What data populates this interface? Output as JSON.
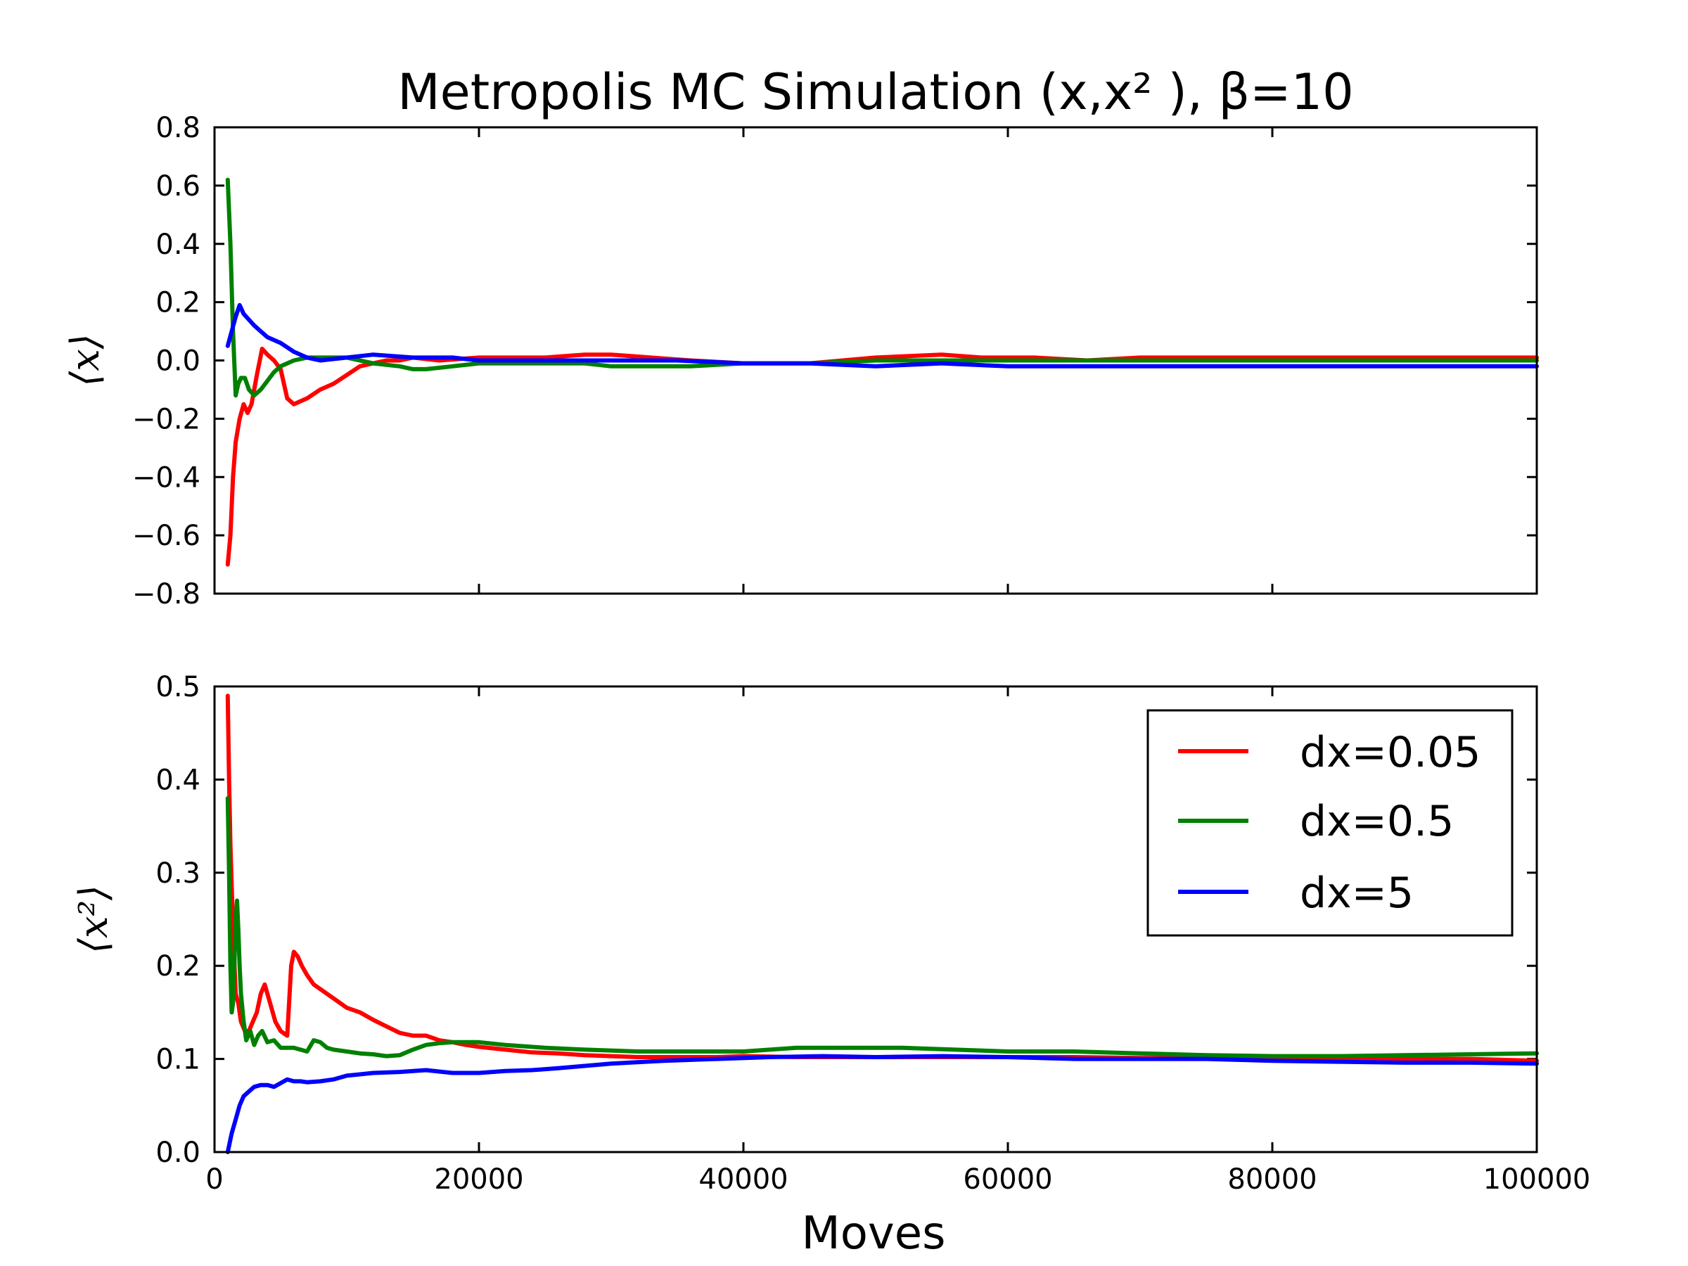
{
  "chart_data": [
    {
      "type": "line",
      "title": "Metropolis MC Simulation (x,x² ), β=10",
      "xlabel": "",
      "ylabel": "⟨x⟩",
      "xlim": [
        0,
        100000
      ],
      "ylim": [
        -0.8,
        0.8
      ],
      "yticks": [
        "0.8",
        "0.6",
        "0.4",
        "0.2",
        "0.0",
        "−0.2",
        "−0.4",
        "−0.6",
        "−0.8"
      ],
      "ytick_values": [
        0.8,
        0.6,
        0.4,
        0.2,
        0.0,
        -0.2,
        -0.4,
        -0.6,
        -0.8
      ],
      "xtick_values": [
        0,
        20000,
        40000,
        60000,
        80000,
        100000
      ],
      "series": [
        {
          "name": "dx=0.05",
          "color": "#ff0000",
          "x": [
            1000,
            1200,
            1400,
            1600,
            1900,
            2200,
            2500,
            2800,
            3200,
            3600,
            4000,
            4500,
            5000,
            5500,
            6000,
            6500,
            7000,
            8000,
            9000,
            10000,
            11000,
            12000,
            13000,
            14000,
            15000,
            17000,
            20000,
            25000,
            28000,
            30000,
            33000,
            36000,
            40000,
            45000,
            50000,
            55000,
            58000,
            62000,
            66000,
            70000,
            74000,
            78000,
            82000,
            86000,
            90000,
            95000,
            100000
          ],
          "y": [
            -0.7,
            -0.6,
            -0.4,
            -0.28,
            -0.2,
            -0.15,
            -0.18,
            -0.15,
            -0.05,
            0.04,
            0.02,
            0.0,
            -0.03,
            -0.13,
            -0.15,
            -0.14,
            -0.13,
            -0.1,
            -0.08,
            -0.05,
            -0.02,
            -0.01,
            0.0,
            0.0,
            0.01,
            0.0,
            0.01,
            0.01,
            0.02,
            0.02,
            0.01,
            0.0,
            -0.01,
            -0.01,
            0.01,
            0.02,
            0.01,
            0.01,
            0.0,
            0.01,
            0.01,
            0.01,
            0.01,
            0.01,
            0.01,
            0.01,
            0.01
          ]
        },
        {
          "name": "dx=0.5",
          "color": "#008000",
          "x": [
            1000,
            1200,
            1400,
            1600,
            1800,
            2000,
            2300,
            2600,
            3000,
            3500,
            4000,
            4500,
            5000,
            6000,
            7000,
            8000,
            9000,
            10000,
            12000,
            14000,
            15000,
            16000,
            18000,
            20000,
            22000,
            25000,
            28000,
            30000,
            33000,
            36000,
            40000,
            45000,
            50000,
            55000,
            60000,
            65000,
            70000,
            75000,
            80000,
            85000,
            90000,
            95000,
            100000
          ],
          "y": [
            0.62,
            0.4,
            0.1,
            -0.12,
            -0.08,
            -0.06,
            -0.06,
            -0.1,
            -0.12,
            -0.1,
            -0.07,
            -0.04,
            -0.02,
            0.0,
            0.01,
            0.01,
            0.01,
            0.01,
            -0.01,
            -0.02,
            -0.03,
            -0.03,
            -0.02,
            -0.01,
            -0.01,
            -0.01,
            -0.01,
            -0.02,
            -0.02,
            -0.02,
            -0.01,
            -0.01,
            0.0,
            0.0,
            0.0,
            0.0,
            0.0,
            0.0,
            0.0,
            0.0,
            0.0,
            0.0,
            0.0
          ]
        },
        {
          "name": "dx=5",
          "color": "#0000ff",
          "x": [
            1000,
            1300,
            1600,
            1900,
            2200,
            2600,
            3000,
            3500,
            4000,
            5000,
            6000,
            7000,
            8000,
            10000,
            12000,
            15000,
            18000,
            20000,
            25000,
            30000,
            35000,
            40000,
            45000,
            50000,
            55000,
            60000,
            65000,
            70000,
            75000,
            80000,
            85000,
            90000,
            95000,
            100000
          ],
          "y": [
            0.05,
            0.1,
            0.15,
            0.19,
            0.16,
            0.14,
            0.12,
            0.1,
            0.08,
            0.06,
            0.03,
            0.01,
            0.0,
            0.01,
            0.02,
            0.01,
            0.01,
            0.0,
            0.0,
            0.0,
            0.0,
            -0.01,
            -0.01,
            -0.02,
            -0.01,
            -0.02,
            -0.02,
            -0.02,
            -0.02,
            -0.02,
            -0.02,
            -0.02,
            -0.02,
            -0.02
          ]
        }
      ]
    },
    {
      "type": "line",
      "title": "",
      "xlabel": "Moves",
      "ylabel": "⟨x²⟩",
      "xlim": [
        0,
        100000
      ],
      "ylim": [
        0.0,
        0.5
      ],
      "yticks": [
        "0.5",
        "0.4",
        "0.3",
        "0.2",
        "0.1",
        "0.0"
      ],
      "ytick_values": [
        0.5,
        0.4,
        0.3,
        0.2,
        0.1,
        0.0
      ],
      "xticks": [
        "0",
        "20000",
        "40000",
        "60000",
        "80000",
        "100000"
      ],
      "xtick_values": [
        0,
        20000,
        40000,
        60000,
        80000,
        100000
      ],
      "legend": {
        "position": "top-right",
        "entries": [
          {
            "label": "dx=0.05",
            "color": "#ff0000"
          },
          {
            "label": "dx=0.5",
            "color": "#008000"
          },
          {
            "label": "dx=5",
            "color": "#0000ff"
          }
        ]
      },
      "series": [
        {
          "name": "dx=0.05",
          "color": "#ff0000",
          "x": [
            1000,
            1100,
            1200,
            1400,
            1600,
            1800,
            2000,
            2300,
            2600,
            2900,
            3200,
            3500,
            3800,
            4200,
            4600,
            5000,
            5500,
            5800,
            6000,
            6300,
            6600,
            7000,
            7500,
            8000,
            9000,
            10000,
            11000,
            12000,
            13000,
            14000,
            15000,
            16000,
            17000,
            18000,
            19000,
            20000,
            22000,
            24000,
            26000,
            28000,
            30000,
            32000,
            34000,
            36000,
            38000,
            40000,
            44000,
            48000,
            52000,
            56000,
            60000,
            65000,
            70000,
            75000,
            80000,
            85000,
            90000,
            95000,
            100000
          ],
          "y": [
            0.49,
            0.4,
            0.33,
            0.24,
            0.17,
            0.16,
            0.14,
            0.13,
            0.13,
            0.14,
            0.15,
            0.17,
            0.18,
            0.16,
            0.14,
            0.13,
            0.125,
            0.2,
            0.215,
            0.21,
            0.2,
            0.19,
            0.18,
            0.175,
            0.165,
            0.155,
            0.15,
            0.142,
            0.135,
            0.128,
            0.125,
            0.125,
            0.12,
            0.118,
            0.115,
            0.113,
            0.11,
            0.107,
            0.106,
            0.104,
            0.103,
            0.102,
            0.102,
            0.102,
            0.102,
            0.103,
            0.102,
            0.102,
            0.102,
            0.102,
            0.102,
            0.102,
            0.101,
            0.101,
            0.101,
            0.1,
            0.1,
            0.1,
            0.098
          ]
        },
        {
          "name": "dx=0.5",
          "color": "#008000",
          "x": [
            1000,
            1100,
            1200,
            1300,
            1400,
            1500,
            1600,
            1700,
            1800,
            1900,
            2000,
            2200,
            2400,
            2700,
            3000,
            3300,
            3600,
            4000,
            4500,
            5000,
            6000,
            7000,
            7500,
            8000,
            8500,
            9000,
            10000,
            11000,
            12000,
            13000,
            14000,
            15000,
            16000,
            17000,
            18000,
            20000,
            22000,
            25000,
            28000,
            32000,
            36000,
            40000,
            44000,
            48000,
            52000,
            56000,
            60000,
            65000,
            70000,
            75000,
            80000,
            85000,
            90000,
            95000,
            100000
          ],
          "y": [
            0.38,
            0.3,
            0.2,
            0.15,
            0.16,
            0.2,
            0.25,
            0.27,
            0.24,
            0.2,
            0.17,
            0.14,
            0.12,
            0.13,
            0.115,
            0.125,
            0.13,
            0.118,
            0.12,
            0.112,
            0.112,
            0.108,
            0.12,
            0.118,
            0.112,
            0.11,
            0.108,
            0.106,
            0.105,
            0.103,
            0.104,
            0.11,
            0.115,
            0.117,
            0.118,
            0.118,
            0.115,
            0.112,
            0.11,
            0.108,
            0.108,
            0.108,
            0.112,
            0.112,
            0.112,
            0.11,
            0.108,
            0.108,
            0.106,
            0.104,
            0.103,
            0.103,
            0.104,
            0.105,
            0.106
          ]
        },
        {
          "name": "dx=5",
          "color": "#0000ff",
          "x": [
            1000,
            1300,
            1600,
            1900,
            2200,
            2600,
            3000,
            3500,
            4000,
            4500,
            5000,
            5500,
            6000,
            6500,
            7000,
            8000,
            9000,
            10000,
            12000,
            14000,
            16000,
            18000,
            20000,
            22000,
            24000,
            26000,
            30000,
            34000,
            38000,
            42000,
            46000,
            50000,
            55000,
            60000,
            65000,
            70000,
            75000,
            80000,
            85000,
            90000,
            95000,
            100000
          ],
          "y": [
            0.0,
            0.02,
            0.035,
            0.05,
            0.06,
            0.065,
            0.07,
            0.072,
            0.072,
            0.07,
            0.074,
            0.078,
            0.076,
            0.076,
            0.075,
            0.076,
            0.078,
            0.082,
            0.085,
            0.086,
            0.088,
            0.085,
            0.085,
            0.087,
            0.088,
            0.09,
            0.095,
            0.098,
            0.1,
            0.102,
            0.103,
            0.102,
            0.103,
            0.102,
            0.1,
            0.1,
            0.1,
            0.098,
            0.097,
            0.096,
            0.096,
            0.095
          ]
        }
      ]
    }
  ]
}
